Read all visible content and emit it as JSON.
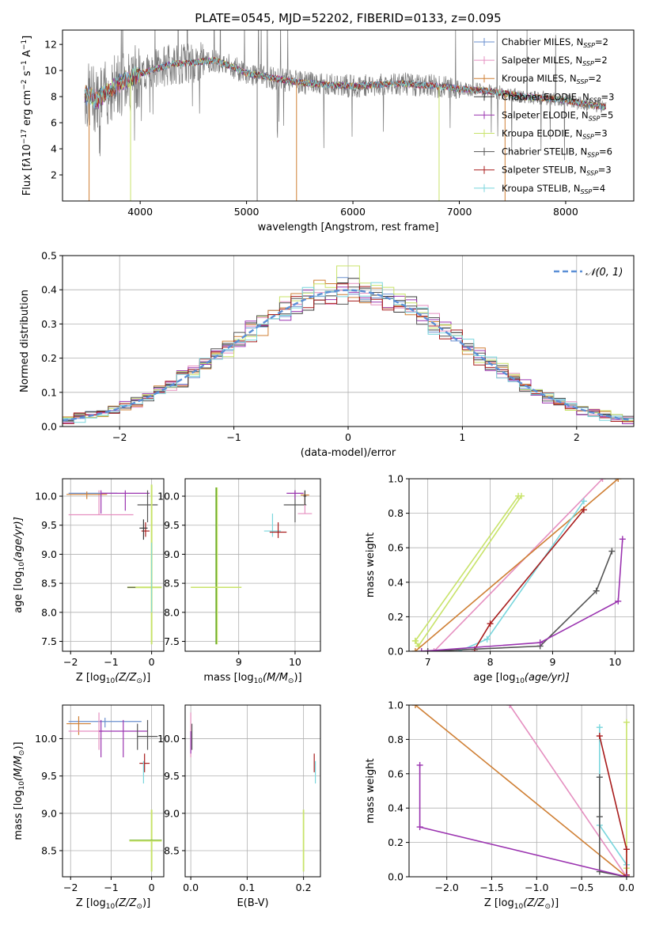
{
  "colors": {
    "Chabrier MILES": "#6a8fcf",
    "Salpeter MILES": "#e58fc0",
    "Kroupa MILES": "#cf7f34",
    "Chabrier ELODIE": "#3a3a3a",
    "Salpeter ELODIE": "#9b34b0",
    "Kroupa ELODIE": "#c8e36a",
    "Chabrier STELIB": "#555555",
    "Salpeter STELIB": "#a81c1c",
    "Kroupa STELIB": "#79d6dd",
    "normal": "#5b8fd6",
    "kroupa_elodie_dark": "#6aaa2a"
  },
  "chart_data": [
    {
      "id": "spectrum",
      "type": "line",
      "title": "PLATE=0545, MJD=52202, FIBERID=0133, z=0.095",
      "xlabel": "wavelength [Angstrom, rest frame]",
      "ylabel": "Flux [f",
      "ylabel_sub": "λ",
      "ylabel_rest": "10",
      "ylabel_sup": "−17",
      "ylabel_unit": " erg cm",
      "ylabel_sup2": "−2",
      "ylabel_unit2": " s",
      "ylabel_sup3": "−1",
      "ylabel_unit3": " A",
      "ylabel_sup4": "−1",
      "ylabel_close": "]",
      "xlim": [
        3270,
        8640
      ],
      "ylim": [
        0,
        13.1
      ],
      "xticks": [
        4000,
        5000,
        6000,
        7000,
        8000
      ],
      "yticks": [
        2,
        4,
        6,
        8,
        10,
        12
      ],
      "data_trend": {
        "x": [
          3480,
          3600,
          3800,
          3950,
          4100,
          4300,
          4500,
          4700,
          4860,
          5000,
          5200,
          5400,
          5600,
          5800,
          6000,
          6200,
          6400,
          6600,
          6800,
          7000,
          7200,
          7400,
          7600,
          7800,
          8000,
          8200,
          8380
        ],
        "y": [
          8.1,
          7.8,
          9.0,
          9.6,
          10.0,
          10.5,
          10.6,
          10.8,
          10.3,
          9.8,
          9.5,
          9.2,
          9.0,
          8.9,
          8.8,
          8.9,
          9.0,
          8.9,
          8.8,
          8.6,
          8.5,
          8.3,
          8.0,
          7.9,
          7.7,
          7.4,
          7.2
        ]
      },
      "legend_position": "upper right",
      "legend": [
        {
          "label": "Chabrier MILES, N",
          "sub": "SSP",
          "val": "=2"
        },
        {
          "label": "Salpeter MILES, N",
          "sub": "SSP",
          "val": "=2"
        },
        {
          "label": "Kroupa MILES, N",
          "sub": "SSP",
          "val": "=2"
        },
        {
          "label": "Chabrier ELODIE, N",
          "sub": "SSP",
          "val": "=3"
        },
        {
          "label": "Salpeter ELODIE, N",
          "sub": "SSP",
          "val": "=5"
        },
        {
          "label": "Kroupa ELODIE, N",
          "sub": "SSP",
          "val": "=3"
        },
        {
          "label": "Chabrier STELIB, N",
          "sub": "SSP",
          "val": "=6"
        },
        {
          "label": "Salpeter STELIB, N",
          "sub": "SSP",
          "val": "=3"
        },
        {
          "label": "Kroupa STELIB, N",
          "sub": "SSP",
          "val": "=4"
        }
      ],
      "grid": false
    },
    {
      "id": "residuals",
      "type": "line",
      "xlabel": "(data-model)/error",
      "ylabel": "Normed distribution",
      "xlim": [
        -2.5,
        2.5
      ],
      "ylim": [
        0,
        0.5
      ],
      "xticks": [
        -2,
        -1,
        0,
        1,
        2
      ],
      "xtick_labels": [
        "−2",
        "−1",
        "0",
        "1",
        "2"
      ],
      "yticks": [
        0.0,
        0.1,
        0.2,
        0.3,
        0.4,
        0.5
      ],
      "ytick_labels": [
        "0.0",
        "0.1",
        "0.2",
        "0.3",
        "0.4",
        "0.5"
      ],
      "normal_label": "𝒩(0, 1)",
      "legend_position": "upper right",
      "grid": true
    },
    {
      "id": "age_vs_Z",
      "type": "scatter",
      "xlabel": "Z [log",
      "xlabel_sub": "10",
      "xlabel_rest": "(Z/Z",
      "xlabel_sub2": "⊙",
      "xlabel_close": ")]",
      "ylabel": "age  [log",
      "ylabel_sub": "10",
      "ylabel_rest": "(age/yr)]",
      "xlim": [
        -2.2,
        0.3
      ],
      "ylim": [
        7.33,
        10.3
      ],
      "xticks": [
        -2,
        -1,
        0
      ],
      "xtick_labels": [
        "−2",
        "−1",
        "0"
      ],
      "yticks": [
        7.5,
        8.0,
        8.5,
        9.0,
        9.5,
        10.0
      ],
      "ytick_labels": [
        "7.5",
        "8.0",
        "8.5",
        "9.0",
        "9.5",
        "10.0"
      ],
      "grid": true
    },
    {
      "id": "age_vs_mass",
      "type": "scatter",
      "xlabel": "mass [log",
      "xlabel_sub": "10",
      "xlabel_rest": "(M/M",
      "xlabel_sub2": "⊙",
      "xlabel_close": ")]",
      "xlim": [
        8.05,
        10.45
      ],
      "ylim": [
        7.33,
        10.3
      ],
      "xticks": [
        9,
        10
      ],
      "xtick_labels": [
        "9",
        "10"
      ],
      "yticks": [
        7.5,
        8.0,
        8.5,
        9.0,
        9.5,
        10.0
      ],
      "ytick_labels": [
        "7.5",
        "8.0",
        "8.5",
        "9.0",
        "9.5",
        "10.0"
      ],
      "grid": true
    },
    {
      "id": "mass_weight_vs_age",
      "type": "line",
      "xlabel": "age  [log",
      "xlabel_sub": "10",
      "xlabel_rest": "(age/yr)]",
      "ylabel": "mass weight",
      "xlim": [
        6.7,
        10.3
      ],
      "ylim": [
        0,
        1.0
      ],
      "xticks": [
        7,
        8,
        9,
        10
      ],
      "xtick_labels": [
        "7",
        "8",
        "9",
        "10"
      ],
      "yticks": [
        0.0,
        0.2,
        0.4,
        0.6,
        0.8,
        1.0
      ],
      "ytick_labels": [
        "0.0",
        "0.2",
        "0.4",
        "0.6",
        "0.8",
        "1.0"
      ],
      "series": [
        {
          "key": "Kroupa ELODIE",
          "x": [
            6.8,
            6.85,
            8.5
          ],
          "y": [
            0.06,
            0.03,
            0.9
          ]
        },
        {
          "key": "Kroupa ELODIE",
          "x": [
            6.8,
            8.45
          ],
          "y": [
            0.06,
            0.9
          ]
        },
        {
          "key": "Salpeter MILES",
          "x": [
            7.1,
            9.8
          ],
          "y": [
            0.0,
            1.0
          ]
        },
        {
          "key": "Kroupa MILES",
          "x": [
            6.8,
            10.05
          ],
          "y": [
            0.0,
            1.0
          ]
        },
        {
          "key": "Kroupa STELIB",
          "x": [
            7.5,
            7.95,
            9.5
          ],
          "y": [
            0.0,
            0.07,
            0.87
          ]
        },
        {
          "key": "Salpeter STELIB",
          "x": [
            7.75,
            8.0,
            9.5
          ],
          "y": [
            0.01,
            0.16,
            0.82
          ]
        },
        {
          "key": "Chabrier STELIB",
          "x": [
            7.0,
            8.8,
            9.7,
            9.95
          ],
          "y": [
            0.0,
            0.03,
            0.35,
            0.58
          ]
        },
        {
          "key": "Salpeter ELODIE",
          "x": [
            6.9,
            8.8,
            10.05,
            10.12
          ],
          "y": [
            0.0,
            0.05,
            0.29,
            0.65
          ]
        }
      ],
      "grid": true
    },
    {
      "id": "mass_vs_Z",
      "type": "scatter",
      "xlabel": "Z [log",
      "xlabel_sub": "10",
      "xlabel_rest": "(Z/Z",
      "xlabel_sub2": "⊙",
      "xlabel_close": ")]",
      "ylabel": "mass [log",
      "ylabel_sub": "10",
      "ylabel_rest": "(M/M",
      "ylabel_sub2": "⊙",
      "ylabel_close": ")]",
      "xlim": [
        -2.2,
        0.3
      ],
      "ylim": [
        8.15,
        10.45
      ],
      "xticks": [
        -2,
        -1,
        0
      ],
      "xtick_labels": [
        "−2",
        "−1",
        "0"
      ],
      "yticks": [
        8.5,
        9.0,
        9.5,
        10.0
      ],
      "ytick_labels": [
        "8.5",
        "9.0",
        "9.5",
        "10.0"
      ],
      "grid": true
    },
    {
      "id": "mass_vs_ebv",
      "type": "scatter",
      "xlabel": "E(B-V)",
      "xlim": [
        -0.01,
        0.23
      ],
      "ylim": [
        8.15,
        10.45
      ],
      "xticks": [
        0.0,
        0.1,
        0.2
      ],
      "xtick_labels": [
        "0.0",
        "0.1",
        "0.2"
      ],
      "yticks": [
        8.5,
        9.0,
        9.5,
        10.0
      ],
      "ytick_labels": [
        "8.5",
        "9.0",
        "9.5",
        "10.0"
      ],
      "grid": true
    },
    {
      "id": "mass_weight_vs_Z",
      "type": "line",
      "xlabel": "Z [log",
      "xlabel_sub": "10",
      "xlabel_rest": "(Z/Z",
      "xlabel_sub2": "⊙",
      "xlabel_close": ")]",
      "ylabel": "mass weight",
      "xlim": [
        -2.42,
        0.08
      ],
      "ylim": [
        0,
        1.0
      ],
      "xticks": [
        -2.0,
        -1.5,
        -1.0,
        -0.5,
        0.0
      ],
      "xtick_labels": [
        "−2.0",
        "−1.5",
        "−1.0",
        "−0.5",
        "0.0"
      ],
      "yticks": [
        0.0,
        0.2,
        0.4,
        0.6,
        0.8,
        1.0
      ],
      "ytick_labels": [
        "0.0",
        "0.2",
        "0.4",
        "0.6",
        "0.8",
        "1.0"
      ],
      "series": [
        {
          "key": "Kroupa ELODIE",
          "x": [
            0.0,
            0.0,
            0.0
          ],
          "y": [
            0.9,
            0.05,
            0.0
          ]
        },
        {
          "key": "Salpeter MILES",
          "x": [
            -1.3,
            0.0
          ],
          "y": [
            1.0,
            0.0
          ]
        },
        {
          "key": "Kroupa MILES",
          "x": [
            -2.35,
            0.0
          ],
          "y": [
            1.0,
            0.0
          ]
        },
        {
          "key": "Kroupa STELIB",
          "x": [
            -0.3,
            -0.3,
            0.0,
            0.0
          ],
          "y": [
            0.87,
            0.3,
            0.07,
            0.0
          ]
        },
        {
          "key": "Salpeter STELIB",
          "x": [
            -0.3,
            0.0,
            0.0
          ],
          "y": [
            0.82,
            0.16,
            0.01
          ]
        },
        {
          "key": "Chabrier STELIB",
          "x": [
            -0.3,
            -0.3,
            -0.3,
            0.0
          ],
          "y": [
            0.58,
            0.35,
            0.03,
            0.0
          ]
        },
        {
          "key": "Salpeter ELODIE",
          "x": [
            -2.3,
            -2.3,
            0.0
          ],
          "y": [
            0.65,
            0.29,
            0.0
          ]
        }
      ],
      "grid": true
    }
  ]
}
